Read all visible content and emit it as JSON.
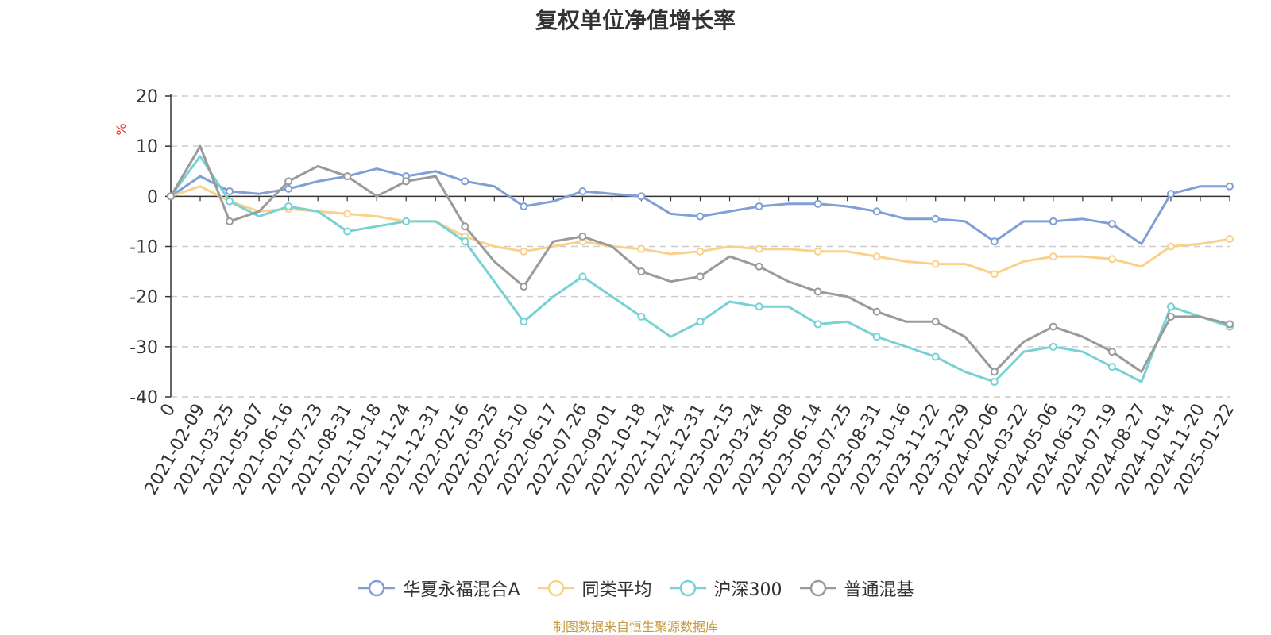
{
  "title": "复权单位净值增长率",
  "source": "制图数据来自恒生聚源数据库",
  "chart_data": {
    "type": "line",
    "title": "复权单位净值增长率",
    "ylabel": "%",
    "xlabel": "",
    "ylim": [
      -40,
      20
    ],
    "yticks": [
      20,
      10,
      0,
      -10,
      -20,
      -30,
      -40
    ],
    "grid": true,
    "legend": "bottom-center",
    "categories": [
      "0",
      "2021-02-09",
      "2021-03-25",
      "2021-05-07",
      "2021-06-16",
      "2021-07-23",
      "2021-08-31",
      "2021-10-18",
      "2021-11-24",
      "2021-12-31",
      "2022-02-16",
      "2022-03-25",
      "2022-05-10",
      "2022-06-17",
      "2022-07-26",
      "2022-09-01",
      "2022-10-18",
      "2022-11-24",
      "2022-12-31",
      "2023-02-15",
      "2023-03-24",
      "2023-05-08",
      "2023-06-14",
      "2023-07-25",
      "2023-08-31",
      "2023-10-16",
      "2023-11-22",
      "2023-12-29",
      "2024-02-06",
      "2024-03-22",
      "2024-05-06",
      "2024-06-13",
      "2024-07-19",
      "2024-08-27",
      "2024-10-14",
      "2024-11-20",
      "2025-01-22"
    ],
    "series": [
      {
        "name": "华夏永福混合A",
        "color": "#7f9fd6",
        "values": [
          0,
          4,
          1,
          0.5,
          1.5,
          3,
          4,
          5.5,
          4,
          5,
          3,
          2,
          -2,
          -1,
          1,
          0.5,
          0,
          -3.5,
          -4,
          -3,
          -2,
          -1.5,
          -1.5,
          -2,
          -3,
          -4.5,
          -4.5,
          -5,
          -9,
          -5,
          -5,
          -4.5,
          -5.5,
          -9.5,
          0.5,
          2,
          2
        ]
      },
      {
        "name": "同类平均",
        "color": "#fad18a",
        "values": [
          0,
          2,
          -1,
          -3,
          -2.5,
          -3,
          -3.5,
          -4,
          -5,
          -5,
          -8,
          -10,
          -11,
          -10,
          -9,
          -10,
          -10.5,
          -11.5,
          -11,
          -10,
          -10.5,
          -10.5,
          -11,
          -11,
          -12,
          -13,
          -13.5,
          -13.5,
          -15.5,
          -13,
          -12,
          -12,
          -12.5,
          -14,
          -10,
          -9.5,
          -8.5
        ]
      },
      {
        "name": "沪深300",
        "color": "#78d2d4",
        "values": [
          0,
          8,
          -1,
          -4,
          -2,
          -3,
          -7,
          -6,
          -5,
          -5,
          -9,
          -17,
          -25,
          -20,
          -16,
          -20,
          -24,
          -28,
          -25,
          -21,
          -22,
          -22,
          -25.5,
          -25,
          -28,
          -30,
          -32,
          -35,
          -37,
          -31,
          -30,
          -31,
          -34,
          -37,
          -22,
          -24,
          -26
        ]
      },
      {
        "name": "普通混基",
        "color": "#9a9a9a",
        "values": [
          0,
          10,
          -5,
          -3,
          3,
          6,
          4,
          0,
          3,
          4,
          -6,
          -13,
          -18,
          -9,
          -8,
          -10,
          -15,
          -17,
          -16,
          -12,
          -14,
          -17,
          -19,
          -20,
          -23,
          -25,
          -25,
          -28,
          -35,
          -29,
          -26,
          -28,
          -31,
          -35,
          -24,
          -24,
          -25.5
        ]
      }
    ]
  },
  "legend_icon": "circle-line-icon"
}
